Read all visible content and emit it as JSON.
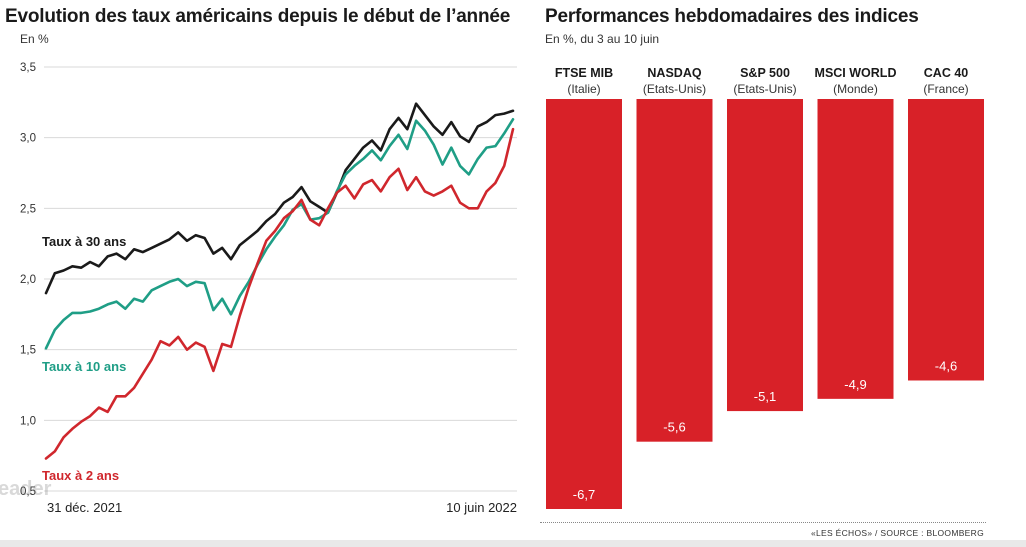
{
  "chart_data": [
    {
      "type": "line",
      "title": "Evolution des taux américains depuis le début de l’année",
      "subtitle": "En %",
      "x_start_label": "31 déc. 2021",
      "x_end_label": "10 juin 2022",
      "yticks": [
        "3,5",
        "3,0",
        "2,5",
        "2,0",
        "1,5",
        "1,0",
        "0,5"
      ],
      "ylim": [
        0.5,
        3.5
      ],
      "grid": true,
      "colors": {
        "30y": "#1a1a1a",
        "10y": "#1f9e86",
        "2y": "#d0272d"
      },
      "series": [
        {
          "name": "Taux à 30 ans",
          "values": [
            1.9,
            2.04,
            2.06,
            2.09,
            2.08,
            2.12,
            2.09,
            2.16,
            2.18,
            2.14,
            2.21,
            2.19,
            2.22,
            2.25,
            2.28,
            2.33,
            2.27,
            2.31,
            2.29,
            2.18,
            2.22,
            2.14,
            2.24,
            2.29,
            2.34,
            2.41,
            2.46,
            2.54,
            2.58,
            2.65,
            2.55,
            2.51,
            2.47,
            2.61,
            2.77,
            2.85,
            2.93,
            2.98,
            2.91,
            3.06,
            3.14,
            3.06,
            3.24,
            3.16,
            3.08,
            3.02,
            3.11,
            3.01,
            2.97,
            3.08,
            3.11,
            3.16,
            3.17,
            3.19
          ]
        },
        {
          "name": "Taux à 10 ans",
          "values": [
            1.51,
            1.64,
            1.71,
            1.76,
            1.76,
            1.77,
            1.79,
            1.82,
            1.84,
            1.79,
            1.86,
            1.84,
            1.92,
            1.95,
            1.98,
            2.0,
            1.95,
            1.98,
            1.97,
            1.78,
            1.86,
            1.75,
            1.88,
            1.98,
            2.1,
            2.21,
            2.3,
            2.38,
            2.49,
            2.53,
            2.42,
            2.43,
            2.47,
            2.62,
            2.74,
            2.8,
            2.85,
            2.91,
            2.84,
            2.94,
            3.02,
            2.92,
            3.12,
            3.05,
            2.95,
            2.81,
            2.93,
            2.8,
            2.74,
            2.85,
            2.93,
            2.94,
            3.03,
            3.13
          ]
        },
        {
          "name": "Taux à 2 ans",
          "values": [
            0.73,
            0.78,
            0.88,
            0.94,
            0.99,
            1.03,
            1.09,
            1.06,
            1.17,
            1.17,
            1.23,
            1.33,
            1.43,
            1.56,
            1.53,
            1.59,
            1.5,
            1.55,
            1.52,
            1.35,
            1.54,
            1.52,
            1.74,
            1.94,
            2.11,
            2.27,
            2.34,
            2.43,
            2.48,
            2.56,
            2.42,
            2.38,
            2.5,
            2.61,
            2.66,
            2.57,
            2.67,
            2.7,
            2.62,
            2.72,
            2.78,
            2.63,
            2.72,
            2.62,
            2.59,
            2.62,
            2.66,
            2.54,
            2.5,
            2.5,
            2.62,
            2.68,
            2.8,
            3.06
          ]
        }
      ]
    },
    {
      "type": "bar",
      "title": "Performances hebdomadaires des indices",
      "subtitle": "En %, du 3 au 10 juin",
      "color": "#d82128",
      "ylim": [
        -6.7,
        0
      ],
      "bars": [
        {
          "name": "FTSE MIB",
          "region": "(Italie)",
          "value": -6.7,
          "label": "-6,7"
        },
        {
          "name": "NASDAQ",
          "region": "(Etats-Unis)",
          "value": -5.6,
          "label": "-5,6"
        },
        {
          "name": "S&P 500",
          "region": "(Etats-Unis)",
          "value": -5.1,
          "label": "-5,1"
        },
        {
          "name": "MSCI WORLD",
          "region": "(Monde)",
          "value": -4.9,
          "label": "-4,9"
        },
        {
          "name": "CAC 40",
          "region": "(France)",
          "value": -4.6,
          "label": "-4,6"
        }
      ]
    }
  ],
  "watermark": "eader",
  "source": "«LES ÉCHOS» / SOURCE : BLOOMBERG"
}
